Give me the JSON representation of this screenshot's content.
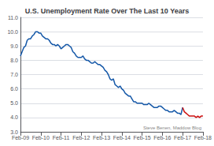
{
  "chart_data": {
    "type": "line",
    "title": "U.S. Unemployment Rate Over The Last 10 Years",
    "annotation": "Steve Benen, Maddow Blog",
    "grid": true,
    "categories": [
      "Feb-09",
      null,
      null,
      null,
      null,
      null,
      null,
      null,
      null,
      null,
      null,
      null,
      "Feb-10",
      null,
      null,
      null,
      null,
      null,
      null,
      null,
      null,
      null,
      null,
      null,
      "Feb-11",
      null,
      null,
      null,
      null,
      null,
      null,
      null,
      null,
      null,
      null,
      null,
      "Feb-12",
      null,
      null,
      null,
      null,
      null,
      null,
      null,
      null,
      null,
      null,
      null,
      "Feb-13",
      null,
      null,
      null,
      null,
      null,
      null,
      null,
      null,
      null,
      null,
      null,
      "Feb-14",
      null,
      null,
      null,
      null,
      null,
      null,
      null,
      null,
      null,
      null,
      null,
      "Feb-15",
      null,
      null,
      null,
      null,
      null,
      null,
      null,
      null,
      null,
      null,
      null,
      "Feb-16",
      null,
      null,
      null,
      null,
      null,
      null,
      null,
      null,
      null,
      null,
      null,
      "Feb-17",
      null,
      null,
      null,
      null,
      null,
      null,
      null,
      null,
      null,
      null,
      null,
      "Feb-18"
    ],
    "ylim": [
      3.0,
      11.0
    ],
    "yticks": [
      {
        "value": 3.0,
        "label": "3.0"
      },
      {
        "value": 4.0,
        "label": "4.0"
      },
      {
        "value": 5.0,
        "label": "5.0"
      },
      {
        "value": 6.0,
        "label": "6.0"
      },
      {
        "value": 7.0,
        "label": "7.0"
      },
      {
        "value": 8.0,
        "label": "8.0"
      },
      {
        "value": 9.0,
        "label": "9.0"
      },
      {
        "value": 10.0,
        "label": "10.0"
      },
      {
        "value": 11.0,
        "label": "11.0"
      }
    ],
    "series": [
      {
        "color": "#1558a8",
        "values": [
          8.3,
          8.6,
          8.9,
          9.0,
          9.4,
          9.5,
          9.5,
          9.7,
          9.8,
          10.0,
          10.0,
          9.9,
          9.9,
          9.7,
          9.6,
          9.5,
          9.5,
          9.4,
          9.2,
          9.1,
          9.1,
          9.0,
          9.1,
          9.0,
          8.8,
          8.9,
          9.0,
          9.1,
          9.1,
          9.0,
          8.9,
          8.6,
          8.5,
          8.3,
          8.2,
          8.2,
          8.2,
          8.3,
          8.1,
          8.0,
          8.0,
          7.9,
          7.8,
          7.8,
          7.9,
          7.8,
          7.7,
          7.7,
          7.6,
          7.5,
          7.3,
          7.2,
          7.0,
          6.7,
          6.6,
          6.7,
          6.3,
          6.2,
          6.1,
          6.2,
          6.0,
          5.9,
          5.7,
          5.6,
          5.5,
          5.5,
          5.3,
          5.1,
          5.1,
          5.0,
          5.0,
          5.0,
          5.0,
          4.9,
          4.9,
          4.9,
          5.0,
          4.9,
          4.8,
          4.7,
          4.7,
          4.7,
          4.8,
          4.8,
          4.7,
          4.6,
          4.5,
          4.5,
          4.4,
          4.4,
          4.4,
          4.5,
          4.4,
          4.3,
          4.3,
          4.2,
          4.7,
          null,
          null,
          null,
          null,
          null,
          null,
          null,
          null,
          null,
          null,
          null,
          null
        ]
      },
      {
        "color": "#cc1111",
        "values": [
          null,
          null,
          null,
          null,
          null,
          null,
          null,
          null,
          null,
          null,
          null,
          null,
          null,
          null,
          null,
          null,
          null,
          null,
          null,
          null,
          null,
          null,
          null,
          null,
          null,
          null,
          null,
          null,
          null,
          null,
          null,
          null,
          null,
          null,
          null,
          null,
          null,
          null,
          null,
          null,
          null,
          null,
          null,
          null,
          null,
          null,
          null,
          null,
          null,
          null,
          null,
          null,
          null,
          null,
          null,
          null,
          null,
          null,
          null,
          null,
          null,
          null,
          null,
          null,
          null,
          null,
          null,
          null,
          null,
          null,
          null,
          null,
          null,
          null,
          null,
          null,
          null,
          null,
          null,
          null,
          null,
          null,
          null,
          null,
          null,
          null,
          null,
          null,
          null,
          null,
          null,
          null,
          null,
          null,
          null,
          null,
          4.7,
          4.4,
          4.3,
          4.2,
          4.1,
          4.1,
          4.1,
          4.1,
          4.0,
          4.1,
          4.0,
          4.1,
          4.1
        ]
      }
    ]
  }
}
